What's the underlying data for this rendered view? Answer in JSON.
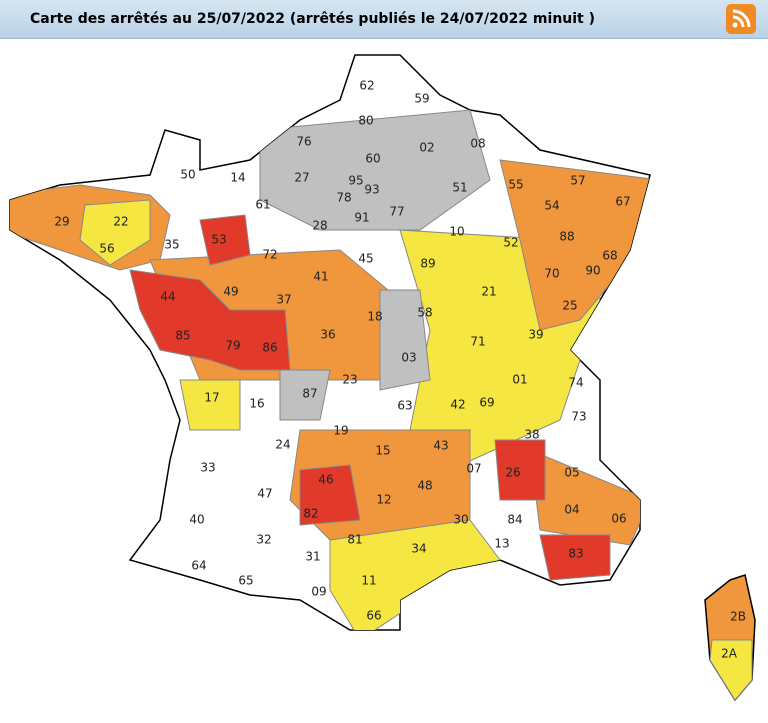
{
  "header": {
    "title": "Carte des arrêtés au 25/07/2022 (arrêtés publiés le 24/07/2022 minuit )"
  },
  "map": {
    "departments": [
      "62",
      "59",
      "80",
      "76",
      "60",
      "02",
      "08",
      "50",
      "14",
      "27",
      "95",
      "51",
      "55",
      "57",
      "67",
      "29",
      "22",
      "61",
      "78",
      "93",
      "91",
      "77",
      "54",
      "88",
      "68",
      "56",
      "35",
      "53",
      "72",
      "28",
      "10",
      "52",
      "45",
      "89",
      "70",
      "90",
      "44",
      "49",
      "37",
      "41",
      "18",
      "58",
      "21",
      "25",
      "85",
      "79",
      "86",
      "36",
      "71",
      "39",
      "03",
      "01",
      "74",
      "17",
      "16",
      "87",
      "23",
      "63",
      "42",
      "69",
      "73",
      "19",
      "38",
      "24",
      "15",
      "43",
      "33",
      "07",
      "26",
      "05",
      "46",
      "12",
      "48",
      "47",
      "04",
      "06",
      "40",
      "82",
      "81",
      "30",
      "84",
      "32",
      "13",
      "83",
      "34",
      "31",
      "64",
      "65",
      "11",
      "09",
      "66",
      "2B",
      "2A"
    ]
  }
}
